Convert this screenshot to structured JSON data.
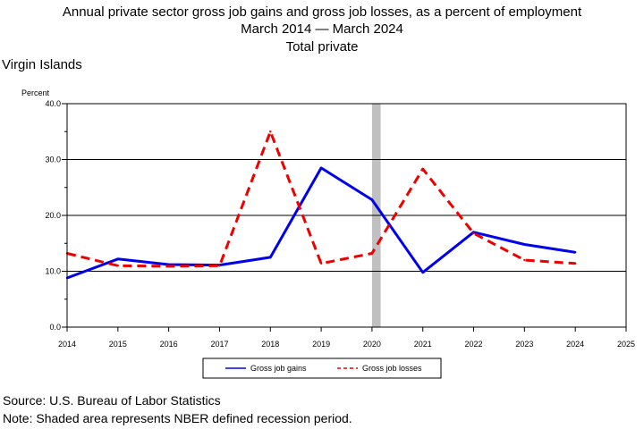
{
  "chart_data": {
    "type": "line",
    "title_lines": [
      "Annual private sector gross job gains and gross job losses, as a percent of employment",
      "March 2014 — March 2024",
      "Total private"
    ],
    "region": "Virgin Islands",
    "ylabel": "Percent",
    "xlim": [
      2014,
      2025
    ],
    "ylim": [
      0,
      40
    ],
    "x_ticks": [
      "2014",
      "2015",
      "2016",
      "2017",
      "2018",
      "2019",
      "2020",
      "2021",
      "2022",
      "2023",
      "2024",
      "2025"
    ],
    "y_ticks": [
      "0.0",
      "10.0",
      "20.0",
      "30.0",
      "40.0"
    ],
    "gridlines": "horizontal",
    "recession": {
      "start": 2020.0,
      "end": 2020.17,
      "color": "#c0c0c0"
    },
    "legend_position": "bottom-center",
    "series": [
      {
        "name": "Gross job gains",
        "style": "solid",
        "color": "#0000ee",
        "x": [
          2014,
          2015,
          2016,
          2017,
          2018,
          2019,
          2020,
          2021,
          2022,
          2023,
          2024
        ],
        "values": [
          8.8,
          12.2,
          11.2,
          11.1,
          12.5,
          28.5,
          22.8,
          9.8,
          17.0,
          14.8,
          13.4
        ]
      },
      {
        "name": "Gross job losses",
        "style": "dashed",
        "color": "#ee0000",
        "x": [
          2014,
          2015,
          2016,
          2017,
          2018,
          2019,
          2020,
          2021,
          2022,
          2023,
          2024
        ],
        "values": [
          13.2,
          11.0,
          10.9,
          11.0,
          35.0,
          11.4,
          13.2,
          28.3,
          16.8,
          12.0,
          11.4
        ]
      }
    ]
  },
  "footer": {
    "source": "Source: U.S. Bureau of Labor Statistics",
    "note": "Note: Shaded area represents NBER defined recession period."
  }
}
